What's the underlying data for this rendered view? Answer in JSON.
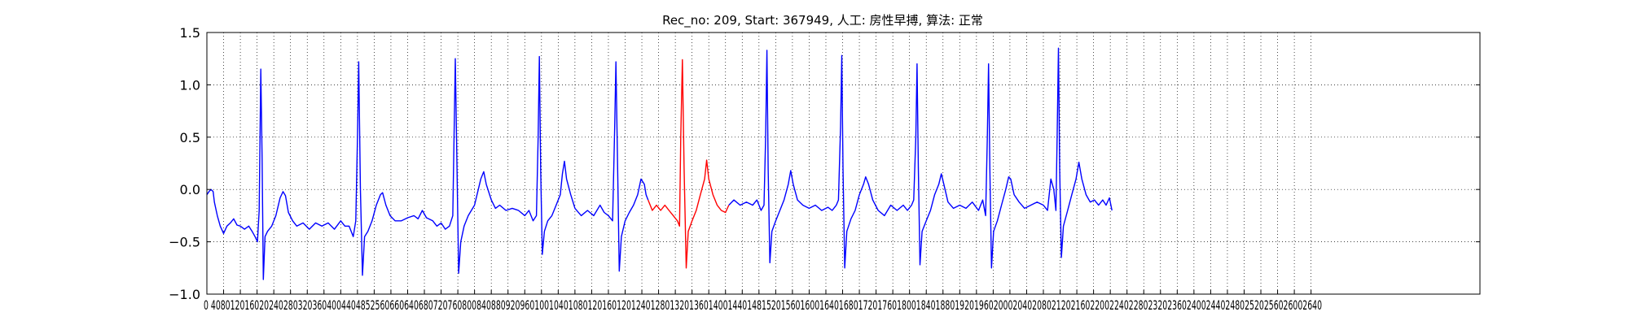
{
  "chart_data": {
    "type": "line",
    "title": "Rec_no: 209, Start: 367949, 人工: 房性早搏, 算法: 正常",
    "xlabel": "",
    "ylabel": "",
    "xlim": [
      0,
      3000
    ],
    "ylim": [
      -1.0,
      1.5
    ],
    "grid": true,
    "y_ticks": [
      "−1.0",
      "−0.5",
      "0.0",
      "0.5",
      "1.0",
      "1.5"
    ],
    "y_tick_values": [
      -1.0,
      -0.5,
      0.0,
      0.5,
      1.0,
      1.5
    ],
    "x_tick_interval": 40,
    "x_tick_count": 67,
    "x_tick_labels_text": "0 4080120160200240280320360400440480520560600640680720760800840880920960100010401080112011601200124012801320136014001440148015201560160016401680172017601800184018801920196020002040208021202160220022402280232023602400244024802520256026002640",
    "x_tick_labels_visible": "0 40801201602024028032036040044048525606606406807207608008408809209601001040108012016012012401280132013601400144014815201560160016401680172017601800184018801920196020002040208021202160220022402280232023602400244024802520256026002640",
    "series": [
      {
        "color": "#0000ff",
        "points": [
          [
            0,
            -0.05
          ],
          [
            5,
            -0.02
          ],
          [
            10,
            0.0
          ],
          [
            15,
            -0.02
          ],
          [
            18,
            -0.12
          ],
          [
            25,
            -0.25
          ],
          [
            32,
            -0.35
          ],
          [
            40,
            -0.42
          ],
          [
            48,
            -0.35
          ],
          [
            56,
            -0.32
          ],
          [
            64,
            -0.28
          ],
          [
            72,
            -0.34
          ],
          [
            80,
            -0.35
          ],
          [
            90,
            -0.38
          ],
          [
            100,
            -0.35
          ],
          [
            108,
            -0.4
          ],
          [
            115,
            -0.45
          ],
          [
            121,
            -0.5
          ],
          [
            125,
            -0.2
          ],
          [
            129,
            1.15
          ],
          [
            132,
            0.3
          ],
          [
            135,
            -0.86
          ],
          [
            139,
            -0.45
          ],
          [
            145,
            -0.4
          ],
          [
            155,
            -0.35
          ],
          [
            165,
            -0.25
          ],
          [
            175,
            -0.08
          ],
          [
            182,
            -0.02
          ],
          [
            188,
            -0.06
          ],
          [
            195,
            -0.22
          ],
          [
            205,
            -0.3
          ],
          [
            215,
            -0.35
          ],
          [
            230,
            -0.32
          ],
          [
            245,
            -0.38
          ],
          [
            260,
            -0.32
          ],
          [
            275,
            -0.35
          ],
          [
            290,
            -0.32
          ],
          [
            305,
            -0.38
          ],
          [
            320,
            -0.3
          ],
          [
            330,
            -0.35
          ],
          [
            340,
            -0.35
          ],
          [
            350,
            -0.45
          ],
          [
            356,
            -0.3
          ],
          [
            360,
            0.5
          ],
          [
            363,
            1.22
          ],
          [
            367,
            0.0
          ],
          [
            372,
            -0.82
          ],
          [
            377,
            -0.45
          ],
          [
            385,
            -0.4
          ],
          [
            395,
            -0.3
          ],
          [
            405,
            -0.15
          ],
          [
            415,
            -0.05
          ],
          [
            420,
            -0.03
          ],
          [
            428,
            -0.15
          ],
          [
            438,
            -0.25
          ],
          [
            450,
            -0.3
          ],
          [
            465,
            -0.3
          ],
          [
            480,
            -0.27
          ],
          [
            495,
            -0.25
          ],
          [
            505,
            -0.28
          ],
          [
            515,
            -0.2
          ],
          [
            525,
            -0.27
          ],
          [
            540,
            -0.3
          ],
          [
            550,
            -0.35
          ],
          [
            560,
            -0.32
          ],
          [
            570,
            -0.38
          ],
          [
            580,
            -0.35
          ],
          [
            588,
            -0.25
          ],
          [
            594,
            1.25
          ],
          [
            598,
            0.2
          ],
          [
            602,
            -0.8
          ],
          [
            607,
            -0.5
          ],
          [
            615,
            -0.35
          ],
          [
            625,
            -0.25
          ],
          [
            640,
            -0.15
          ],
          [
            655,
            0.1
          ],
          [
            662,
            0.17
          ],
          [
            668,
            0.05
          ],
          [
            680,
            -0.1
          ],
          [
            690,
            -0.18
          ],
          [
            700,
            -0.15
          ],
          [
            715,
            -0.2
          ],
          [
            730,
            -0.18
          ],
          [
            745,
            -0.2
          ],
          [
            760,
            -0.25
          ],
          [
            770,
            -0.2
          ],
          [
            780,
            -0.3
          ],
          [
            788,
            -0.25
          ],
          [
            792,
            0.5
          ],
          [
            795,
            1.27
          ],
          [
            798,
            0.2
          ],
          [
            802,
            -0.62
          ],
          [
            807,
            -0.4
          ],
          [
            815,
            -0.3
          ],
          [
            825,
            -0.25
          ],
          [
            835,
            -0.15
          ],
          [
            845,
            -0.05
          ],
          [
            850,
            0.15
          ],
          [
            855,
            0.27
          ],
          [
            860,
            0.1
          ],
          [
            870,
            -0.05
          ],
          [
            880,
            -0.18
          ],
          [
            895,
            -0.25
          ],
          [
            910,
            -0.2
          ],
          [
            925,
            -0.25
          ],
          [
            940,
            -0.15
          ],
          [
            950,
            -0.22
          ],
          [
            960,
            -0.25
          ],
          [
            970,
            -0.3
          ],
          [
            975,
            0.6
          ],
          [
            978,
            1.22
          ],
          [
            982,
            0.2
          ],
          [
            986,
            -0.78
          ],
          [
            991,
            -0.45
          ],
          [
            1000,
            -0.3
          ],
          [
            1010,
            -0.22
          ],
          [
            1020,
            -0.15
          ],
          [
            1030,
            -0.05
          ],
          [
            1038,
            0.1
          ],
          [
            1046,
            0.05
          ],
          [
            1050,
            -0.05
          ],
          [
            1055,
            -0.1
          ]
        ]
      },
      {
        "color": "#ff0000",
        "points": [
          [
            1055,
            -0.1
          ],
          [
            1065,
            -0.2
          ],
          [
            1075,
            -0.15
          ],
          [
            1085,
            -0.2
          ],
          [
            1095,
            -0.15
          ],
          [
            1105,
            -0.2
          ],
          [
            1115,
            -0.25
          ],
          [
            1125,
            -0.3
          ],
          [
            1130,
            -0.35
          ],
          [
            1133,
            0.5
          ],
          [
            1137,
            1.24
          ],
          [
            1141,
            0.2
          ],
          [
            1146,
            -0.75
          ],
          [
            1151,
            -0.4
          ],
          [
            1160,
            -0.3
          ],
          [
            1170,
            -0.2
          ],
          [
            1180,
            -0.05
          ],
          [
            1190,
            0.1
          ],
          [
            1195,
            0.28
          ],
          [
            1200,
            0.1
          ],
          [
            1210,
            -0.05
          ],
          [
            1220,
            -0.15
          ],
          [
            1230,
            -0.2
          ],
          [
            1240,
            -0.22
          ],
          [
            1248,
            -0.15
          ]
        ]
      },
      {
        "color": "#0000ff",
        "points": [
          [
            1248,
            -0.15
          ],
          [
            1260,
            -0.1
          ],
          [
            1275,
            -0.15
          ],
          [
            1290,
            -0.12
          ],
          [
            1305,
            -0.15
          ],
          [
            1315,
            -0.1
          ],
          [
            1325,
            -0.2
          ],
          [
            1332,
            -0.15
          ],
          [
            1336,
            0.5
          ],
          [
            1339,
            1.33
          ],
          [
            1342,
            0.2
          ],
          [
            1346,
            -0.7
          ],
          [
            1351,
            -0.4
          ],
          [
            1360,
            -0.3
          ],
          [
            1370,
            -0.2
          ],
          [
            1380,
            -0.1
          ],
          [
            1390,
            0.05
          ],
          [
            1396,
            0.18
          ],
          [
            1402,
            0.05
          ],
          [
            1412,
            -0.1
          ],
          [
            1425,
            -0.15
          ],
          [
            1440,
            -0.18
          ],
          [
            1455,
            -0.15
          ],
          [
            1470,
            -0.2
          ],
          [
            1485,
            -0.17
          ],
          [
            1495,
            -0.2
          ],
          [
            1505,
            -0.15
          ],
          [
            1510,
            -0.1
          ],
          [
            1515,
            0.6
          ],
          [
            1518,
            1.28
          ],
          [
            1521,
            0.2
          ],
          [
            1525,
            -0.75
          ],
          [
            1530,
            -0.4
          ],
          [
            1540,
            -0.28
          ],
          [
            1550,
            -0.2
          ],
          [
            1560,
            -0.05
          ],
          [
            1570,
            0.05
          ],
          [
            1575,
            0.12
          ],
          [
            1582,
            0.05
          ],
          [
            1592,
            -0.1
          ],
          [
            1605,
            -0.2
          ],
          [
            1620,
            -0.25
          ],
          [
            1635,
            -0.15
          ],
          [
            1650,
            -0.2
          ],
          [
            1665,
            -0.15
          ],
          [
            1675,
            -0.2
          ],
          [
            1685,
            -0.15
          ],
          [
            1690,
            -0.1
          ],
          [
            1695,
            0.5
          ],
          [
            1698,
            1.2
          ],
          [
            1701,
            0.2
          ],
          [
            1705,
            -0.72
          ],
          [
            1710,
            -0.4
          ],
          [
            1720,
            -0.3
          ],
          [
            1730,
            -0.2
          ],
          [
            1740,
            -0.05
          ],
          [
            1750,
            0.05
          ],
          [
            1756,
            0.15
          ],
          [
            1762,
            0.05
          ],
          [
            1772,
            -0.12
          ],
          [
            1785,
            -0.18
          ],
          [
            1800,
            -0.15
          ],
          [
            1815,
            -0.18
          ],
          [
            1830,
            -0.12
          ],
          [
            1845,
            -0.2
          ],
          [
            1855,
            -0.1
          ],
          [
            1862,
            -0.25
          ],
          [
            1866,
            0.5
          ],
          [
            1869,
            1.2
          ],
          [
            1872,
            0.2
          ],
          [
            1876,
            -0.75
          ],
          [
            1881,
            -0.4
          ],
          [
            1890,
            -0.3
          ],
          [
            1900,
            -0.15
          ],
          [
            1910,
            0.0
          ],
          [
            1917,
            0.12
          ],
          [
            1922,
            0.1
          ],
          [
            1930,
            -0.05
          ],
          [
            1942,
            -0.12
          ],
          [
            1955,
            -0.18
          ],
          [
            1970,
            -0.15
          ],
          [
            1985,
            -0.12
          ],
          [
            2000,
            -0.15
          ],
          [
            2010,
            -0.2
          ],
          [
            2018,
            0.1
          ],
          [
            2025,
            0.0
          ],
          [
            2030,
            -0.2
          ],
          [
            2033,
            0.5
          ],
          [
            2036,
            1.35
          ],
          [
            2039,
            0.2
          ],
          [
            2043,
            -0.65
          ],
          [
            2048,
            -0.35
          ],
          [
            2058,
            -0.2
          ],
          [
            2068,
            -0.05
          ],
          [
            2078,
            0.1
          ],
          [
            2085,
            0.26
          ],
          [
            2092,
            0.1
          ],
          [
            2102,
            -0.05
          ],
          [
            2112,
            -0.12
          ],
          [
            2122,
            -0.1
          ],
          [
            2132,
            -0.15
          ],
          [
            2142,
            -0.1
          ],
          [
            2150,
            -0.15
          ],
          [
            2158,
            -0.08
          ],
          [
            2164,
            -0.2
          ]
        ]
      }
    ]
  }
}
